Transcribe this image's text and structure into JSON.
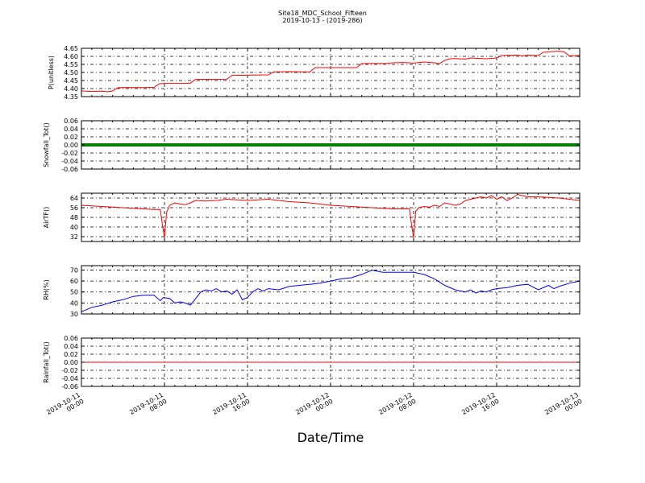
{
  "title": "Site18_MDC_School_Fifteen",
  "subtitle": "2019-10-13 - (2019-286)",
  "xlabel": "Date/Time",
  "x_ticks": [
    "2019-10-11\n00:00",
    "2019-10-11\n08:00",
    "2019-10-11\n16:00",
    "2019-10-12\n00:00",
    "2019-10-12\n08:00",
    "2019-10-12\n16:00",
    "2019-10-13\n00:00"
  ],
  "chart_data": [
    {
      "type": "line",
      "ylabel": "P(unitless)",
      "ylim": [
        4.35,
        4.65
      ],
      "yticks": [
        4.35,
        4.4,
        4.45,
        4.5,
        4.55,
        4.6,
        4.65
      ],
      "ytick_labels": [
        "4.35",
        "4.40",
        "4.45",
        "4.50",
        "4.55",
        "4.60",
        "4.65"
      ],
      "grid": true,
      "series": [
        {
          "color": "#ff0000",
          "x": [
            0,
            1,
            2,
            2.5,
            3,
            3.5,
            4,
            6,
            7,
            7.5,
            8,
            10,
            10.5,
            11,
            14,
            14.5,
            16,
            18,
            18.5,
            20,
            22,
            22.5,
            24,
            26.5,
            27,
            29.5,
            30,
            31,
            32,
            33,
            34,
            34.5,
            35,
            35.5,
            36,
            37,
            37.5,
            38,
            39,
            40,
            40.5,
            41,
            42,
            42.5,
            43,
            44,
            44.5,
            45,
            46,
            46.5,
            47,
            48
          ],
          "y": [
            4.385,
            4.382,
            4.384,
            4.38,
            4.385,
            4.405,
            4.407,
            4.406,
            4.408,
            4.43,
            4.432,
            4.432,
            4.434,
            4.457,
            4.458,
            4.482,
            4.483,
            4.485,
            4.503,
            4.505,
            4.503,
            4.53,
            4.53,
            4.53,
            4.555,
            4.557,
            4.56,
            4.562,
            4.558,
            4.565,
            4.56,
            4.555,
            4.575,
            4.585,
            4.586,
            4.583,
            4.59,
            4.588,
            4.585,
            4.59,
            4.605,
            4.607,
            4.608,
            4.603,
            4.608,
            4.605,
            4.625,
            4.628,
            4.632,
            4.628,
            4.603,
            4.605
          ]
        }
      ]
    },
    {
      "type": "line",
      "ylabel": "Snowfall_Tot()",
      "ylim": [
        -0.06,
        0.06
      ],
      "yticks": [
        -0.06,
        -0.04,
        -0.02,
        0.0,
        0.02,
        0.04,
        0.06
      ],
      "ytick_labels": [
        "-0.06",
        "-0.04",
        "-0.02",
        "0.00",
        "0.02",
        "0.04",
        "0.06"
      ],
      "grid": true,
      "series": [
        {
          "color": "#007f00",
          "x": [
            0,
            48
          ],
          "y": [
            0,
            0
          ]
        }
      ]
    },
    {
      "type": "line",
      "ylabel": "AirTF()",
      "ylim": [
        28,
        68
      ],
      "yticks": [
        32,
        40,
        48,
        56,
        64
      ],
      "ytick_labels": [
        "32",
        "40",
        "48",
        "56",
        "64"
      ],
      "grid": true,
      "series": [
        {
          "color": "#ff0000",
          "x": [
            0,
            2,
            4,
            6,
            7,
            7.6,
            7.8,
            8.0,
            8.2,
            8.5,
            9,
            9.5,
            10,
            10.5,
            11,
            12,
            13,
            14,
            16,
            18,
            20,
            22,
            24,
            26,
            28,
            30,
            31,
            31.6,
            31.8,
            32.0,
            32.2,
            32.5,
            33,
            33.5,
            34,
            34.5,
            35,
            36,
            36.5,
            37,
            37.5,
            38,
            38.5,
            39,
            39.5,
            40,
            40.5,
            41,
            41.5,
            42,
            43,
            44,
            46,
            48
          ],
          "y": [
            58,
            57,
            56,
            55,
            54.5,
            54.5,
            42,
            31,
            52,
            58,
            60,
            59,
            58.5,
            60,
            62,
            61.5,
            62,
            63,
            62,
            63,
            61,
            60,
            58,
            57,
            56,
            55,
            55,
            55,
            42,
            31,
            53,
            56,
            57,
            56.5,
            58,
            57,
            60,
            58,
            59,
            62,
            63,
            64,
            65,
            64,
            66,
            63,
            65,
            62,
            64,
            67,
            65,
            65,
            64,
            62
          ]
        }
      ]
    },
    {
      "type": "line",
      "ylabel": "RH(%)",
      "ylim": [
        30,
        74
      ],
      "yticks": [
        30,
        40,
        50,
        60,
        70
      ],
      "ytick_labels": [
        "30",
        "40",
        "50",
        "60",
        "70"
      ],
      "grid": true,
      "series": [
        {
          "color": "#0000ff",
          "x": [
            0,
            1,
            2,
            3,
            4,
            5,
            6,
            7,
            7.6,
            7.9,
            8.5,
            9,
            9.5,
            10,
            10.5,
            11,
            11.5,
            12,
            12.5,
            13,
            13.5,
            14,
            14.5,
            15,
            15.5,
            16,
            16.5,
            17,
            17.5,
            18,
            19,
            20,
            21,
            22,
            23,
            24,
            25,
            26,
            27,
            28,
            29,
            30,
            31,
            32,
            33,
            34,
            35,
            36,
            37,
            37.5,
            38,
            38.5,
            39,
            39.5,
            40,
            41,
            42,
            43,
            44,
            45,
            45.5,
            46,
            47,
            48
          ],
          "y": [
            32,
            36,
            38,
            41,
            43,
            46,
            47,
            47,
            42,
            45,
            44,
            40,
            41,
            40,
            38,
            44,
            50,
            52,
            51,
            53,
            50,
            51,
            48,
            52,
            43,
            45,
            50,
            53,
            51,
            53,
            52,
            55,
            56,
            57,
            58,
            60,
            62,
            63,
            66,
            70,
            68,
            68,
            68,
            68,
            66,
            62,
            56,
            52,
            50,
            52,
            49,
            51,
            50,
            52,
            53,
            54,
            56,
            57,
            52,
            56,
            53,
            55,
            58,
            60
          ]
        }
      ]
    },
    {
      "type": "line",
      "ylabel": "Rainfall_Tot()",
      "ylim": [
        -0.06,
        0.06
      ],
      "yticks": [
        -0.06,
        -0.04,
        -0.02,
        0.0,
        0.02,
        0.04,
        0.06
      ],
      "ytick_labels": [
        "-0.06",
        "-0.04",
        "-0.02",
        "0.00",
        "0.02",
        "0.04",
        "0.06"
      ],
      "grid": true,
      "series": [
        {
          "color": "#ff0000",
          "x": [
            0,
            48
          ],
          "y": [
            0,
            0
          ]
        }
      ]
    }
  ]
}
